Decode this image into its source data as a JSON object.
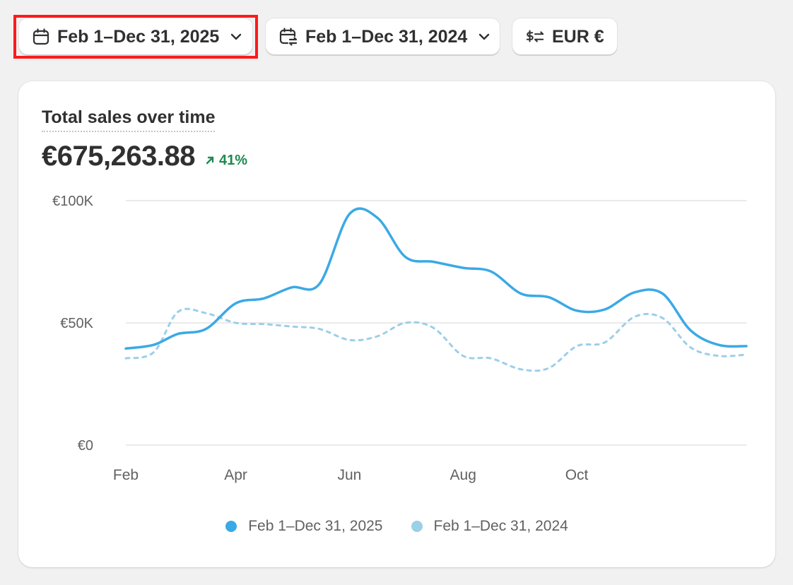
{
  "toolbar": {
    "primary_range": "Feb 1–Dec 31, 2025",
    "compare_range": "Feb 1–Dec 31, 2024",
    "currency": "EUR €",
    "icons": {
      "primary": "calendar-icon",
      "compare": "calendar-compare-icon",
      "currency": "currency-exchange-icon",
      "dropdown": "chevron-down-icon"
    }
  },
  "card": {
    "title": "Total sales over time",
    "total": "€675,263.88",
    "delta": "41%",
    "delta_color": "#1d8a4f"
  },
  "chart_data": {
    "type": "line",
    "x": [
      "2025-02-01",
      "2025-02-16",
      "2025-03-01",
      "2025-03-16",
      "2025-04-01",
      "2025-04-16",
      "2025-05-01",
      "2025-05-16",
      "2025-06-01",
      "2025-06-16",
      "2025-07-01",
      "2025-07-16",
      "2025-08-01",
      "2025-08-16",
      "2025-09-01",
      "2025-09-16",
      "2025-10-01",
      "2025-10-16",
      "2025-11-01",
      "2025-11-16",
      "2025-12-01",
      "2025-12-16",
      "2025-12-31"
    ],
    "series": [
      {
        "name": "Feb 1–Dec 31, 2025",
        "color": "#3ba9e6",
        "style": "solid",
        "values": [
          39500,
          41000,
          45500,
          47500,
          58000,
          60000,
          64500,
          66000,
          94500,
          93000,
          77000,
          75000,
          72500,
          71000,
          62000,
          60500,
          55000,
          55500,
          62500,
          62000,
          47000,
          41000,
          40500
        ]
      },
      {
        "name": "Feb 1–Dec 31, 2024",
        "color": "#9ccfe8",
        "style": "dashed",
        "values": [
          35500,
          38000,
          54500,
          54000,
          50000,
          49500,
          48500,
          47500,
          43000,
          44500,
          50000,
          48000,
          36500,
          35500,
          31000,
          31500,
          40500,
          42000,
          52500,
          52000,
          40000,
          36500,
          37000
        ]
      }
    ],
    "x_ticks": [
      {
        "label": "Feb",
        "date": "2025-02-01"
      },
      {
        "label": "Apr",
        "date": "2025-04-01"
      },
      {
        "label": "Jun",
        "date": "2025-06-01"
      },
      {
        "label": "Aug",
        "date": "2025-08-01"
      },
      {
        "label": "Oct",
        "date": "2025-10-01"
      }
    ],
    "y_ticks": [
      {
        "label": "€100K",
        "value": 100000
      },
      {
        "label": "€50K",
        "value": 50000
      },
      {
        "label": "€0",
        "value": 0
      }
    ],
    "ylim": [
      0,
      100000
    ],
    "grid": true,
    "legend_position": "bottom-center"
  }
}
